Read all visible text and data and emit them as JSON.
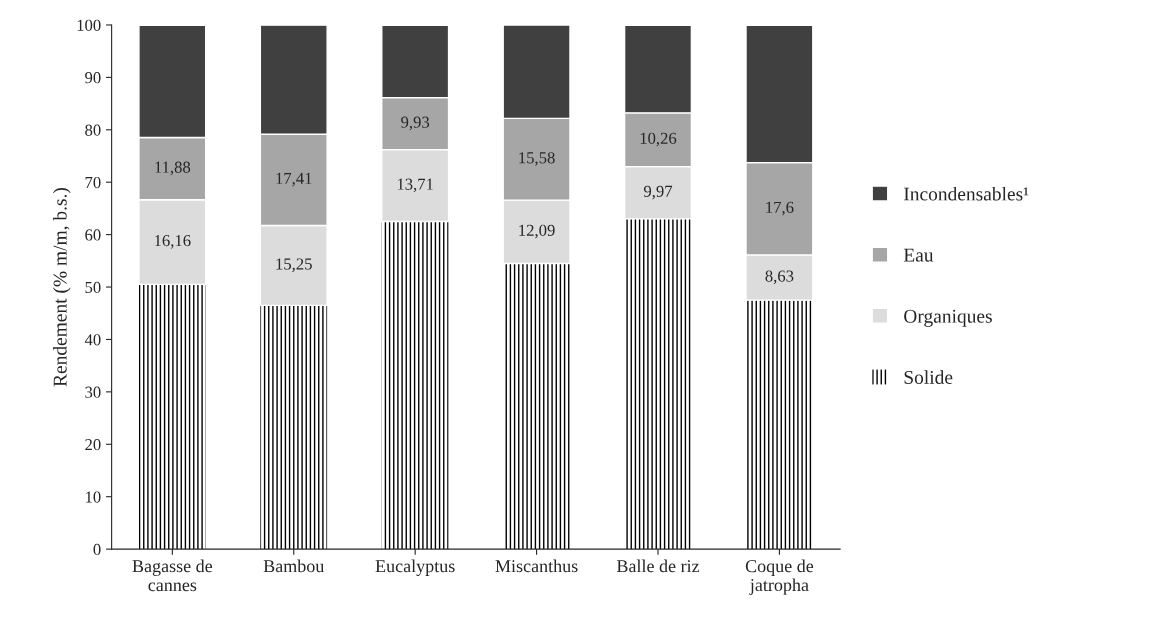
{
  "chart_data": {
    "type": "bar",
    "stacked": true,
    "ylabel": "Rendement (% m/m, b.s.)",
    "categories": [
      "Bagasse de\ncannes",
      "Bambou",
      "Eucalyptus",
      "Miscanthus",
      "Balle de riz",
      "Coque de\njatropha"
    ],
    "series": [
      {
        "name": "Solide",
        "color": "#000000",
        "values": [
          50.5,
          46.5,
          62.5,
          54.5,
          63,
          47.5
        ]
      },
      {
        "name": "Organiques",
        "color": "#dcdcdc",
        "values": [
          16.16,
          15.25,
          13.71,
          12.09,
          9.97,
          8.63
        ],
        "value_labels": [
          "16,16",
          "15,25",
          "13,71",
          "12,09",
          "9,97",
          "8,63"
        ]
      },
      {
        "name": "Eau",
        "color": "#a6a6a6",
        "values": [
          11.88,
          17.41,
          9.93,
          15.58,
          10.26,
          17.6
        ],
        "value_labels": [
          "11,88",
          "17,41",
          "9,93",
          "15,58",
          "10,26",
          "17,6"
        ]
      },
      {
        "name": "Incondensables¹",
        "color": "#404040",
        "values": [
          21.4,
          20.8,
          13.8,
          17.8,
          16.7,
          26.2
        ]
      }
    ],
    "ylim": [
      0,
      100
    ],
    "yticks": [
      0,
      10,
      20,
      30,
      40,
      50,
      60,
      70,
      80,
      90,
      100
    ],
    "grid": false,
    "legend": "right"
  }
}
